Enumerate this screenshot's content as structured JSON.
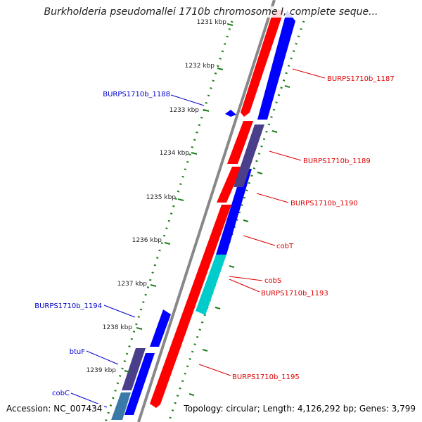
{
  "title": "Burkholderia pseudomallei 1710b chromosome I, complete seque...",
  "footer": {
    "accession": "Accession: NC_007434",
    "summary": "Topology: circular; Length: 4,126,292 bp; Genes: 3,799"
  },
  "colors": {
    "backbone": "#888888",
    "ruler": "#1e7d1e",
    "forward_gene": "#ff0000",
    "reverse_gene": "#0000ff",
    "rna_gene": "#00cccc",
    "pseudo_gene": "#4a3f8a",
    "label_forward": "#dd0000",
    "label_reverse": "#0000cc"
  },
  "ticks": [
    "1231 kbp",
    "1232 kbp",
    "1233 kbp",
    "1234 kbp",
    "1235 kbp",
    "1236 kbp",
    "1237 kbp",
    "1238 kbp",
    "1239 kbp"
  ],
  "labels": {
    "right": [
      "BURPS1710b_1187",
      "BURPS1710b_1189",
      "BURPS1710b_1190",
      "cobT",
      "cobS",
      "BURPS1710b_1193",
      "BURPS1710b_1195"
    ],
    "left": [
      "BURPS1710b_1188",
      "BURPS1710b_1194",
      "btuF",
      "cobC"
    ]
  }
}
